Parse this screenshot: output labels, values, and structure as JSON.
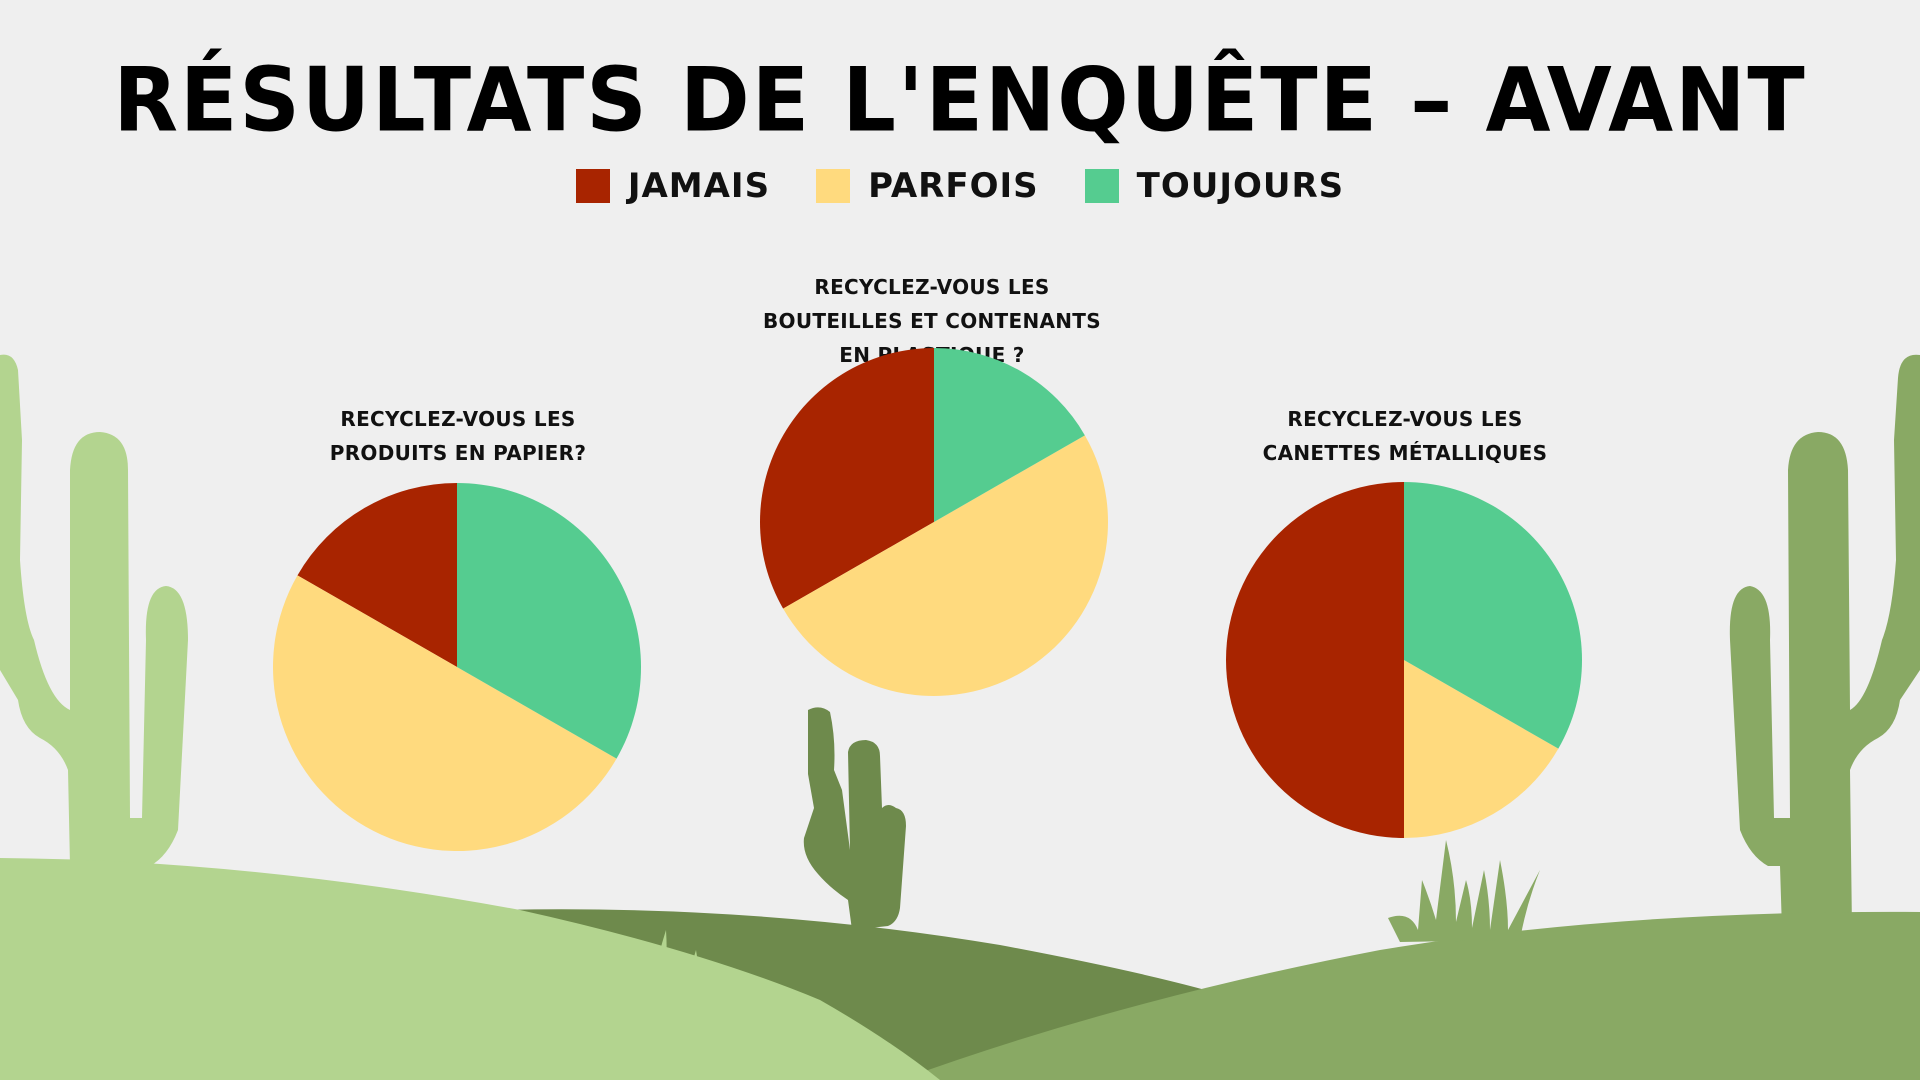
{
  "title": "RÉSULTATS DE L'ENQUÊTE  – AVANT",
  "legend": [
    {
      "label": "JAMAIS",
      "color": "#a82400"
    },
    {
      "label": "PARFOIS",
      "color": "#ffda7e"
    },
    {
      "label": "TOUJOURS",
      "color": "#55cc90"
    }
  ],
  "chart_data": [
    {
      "type": "pie",
      "title": "RECYCLEZ-VOUS LES PRODUITS EN PAPIER?",
      "categories": [
        "JAMAIS",
        "PARFOIS",
        "TOUJOURS"
      ],
      "values": [
        16.7,
        50,
        33.3
      ]
    },
    {
      "type": "pie",
      "title": "RECYCLEZ-VOUS LES BOUTEILLES ET CONTENANTS EN PLASTIQUE ?",
      "categories": [
        "JAMAIS",
        "PARFOIS",
        "TOUJOURS"
      ],
      "values": [
        33.3,
        50,
        16.7
      ]
    },
    {
      "type": "pie",
      "title": "RECYCLEZ-VOUS LES CANETTES MÉTALLIQUES",
      "categories": [
        "JAMAIS",
        "PARFOIS",
        "TOUJOURS"
      ],
      "values": [
        50,
        16.7,
        33.3
      ]
    }
  ]
}
